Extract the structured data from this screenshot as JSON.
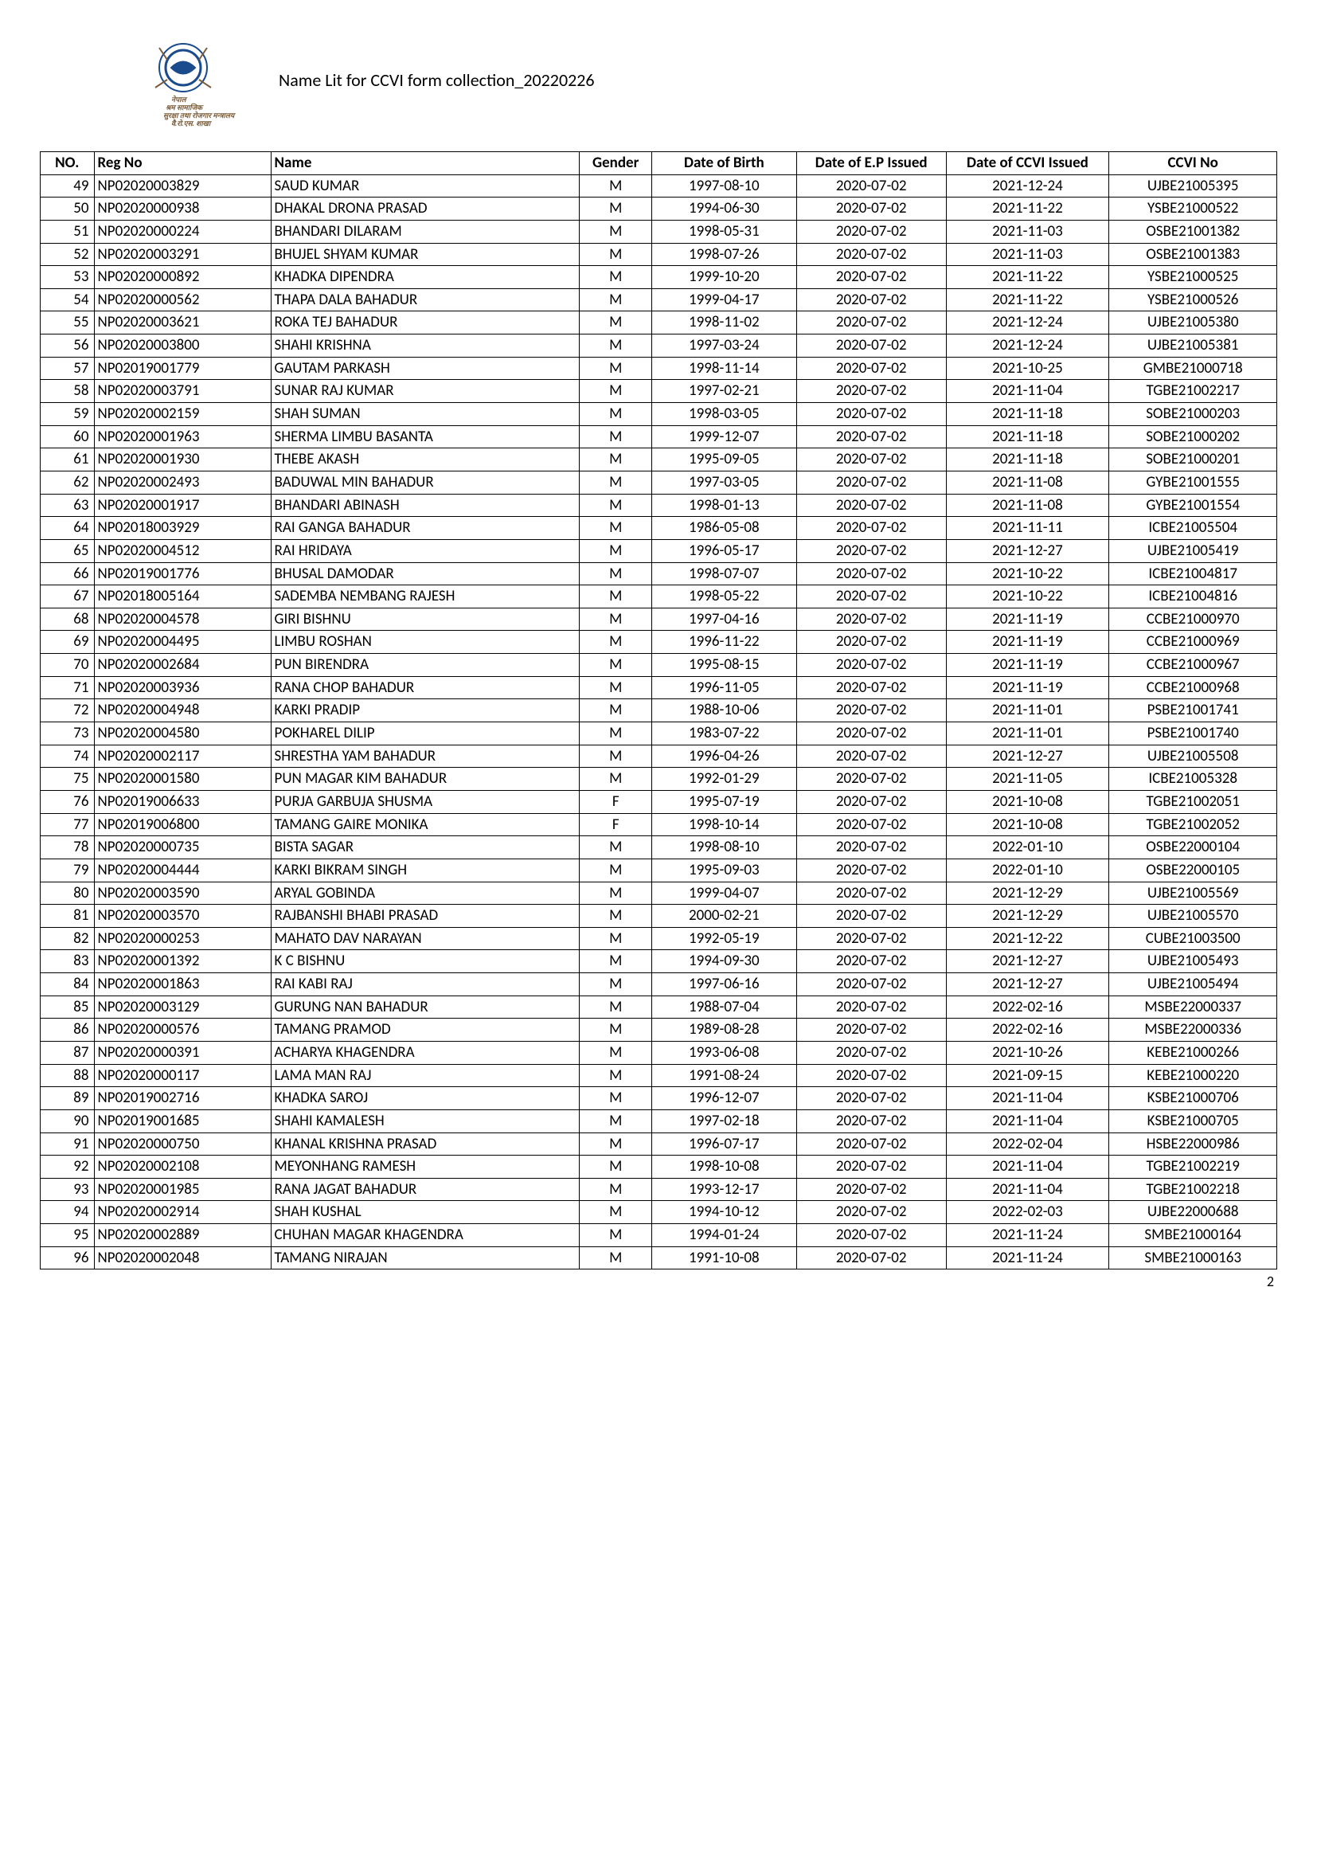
{
  "doc_title": "Name Lit for CCVI form collection_20220226",
  "page_number": "2",
  "columns": {
    "no": "NO.",
    "reg": "Reg No",
    "name": "Name",
    "gender": "Gender",
    "dob": "Date of Birth",
    "ep": "Date of E.P Issued",
    "ccvi": "Date of CCVI Issued",
    "ccvn": "CCVI No"
  },
  "rows": [
    {
      "no": "49",
      "reg": "NP02020003829",
      "name": "SAUD KUMAR",
      "g": "M",
      "dob": "1997-08-10",
      "ep": "2020-07-02",
      "ccvi": "2021-12-24",
      "ccvn": "UJBE21005395"
    },
    {
      "no": "50",
      "reg": "NP02020000938",
      "name": "DHAKAL DRONA PRASAD",
      "g": "M",
      "dob": "1994-06-30",
      "ep": "2020-07-02",
      "ccvi": "2021-11-22",
      "ccvn": "YSBE21000522"
    },
    {
      "no": "51",
      "reg": "NP02020000224",
      "name": "BHANDARI DILARAM",
      "g": "M",
      "dob": "1998-05-31",
      "ep": "2020-07-02",
      "ccvi": "2021-11-03",
      "ccvn": "OSBE21001382"
    },
    {
      "no": "52",
      "reg": "NP02020003291",
      "name": "BHUJEL SHYAM KUMAR",
      "g": "M",
      "dob": "1998-07-26",
      "ep": "2020-07-02",
      "ccvi": "2021-11-03",
      "ccvn": "OSBE21001383"
    },
    {
      "no": "53",
      "reg": "NP02020000892",
      "name": "KHADKA DIPENDRA",
      "g": "M",
      "dob": "1999-10-20",
      "ep": "2020-07-02",
      "ccvi": "2021-11-22",
      "ccvn": "YSBE21000525"
    },
    {
      "no": "54",
      "reg": "NP02020000562",
      "name": "THAPA DALA BAHADUR",
      "g": "M",
      "dob": "1999-04-17",
      "ep": "2020-07-02",
      "ccvi": "2021-11-22",
      "ccvn": "YSBE21000526"
    },
    {
      "no": "55",
      "reg": "NP02020003621",
      "name": "ROKA TEJ BAHADUR",
      "g": "M",
      "dob": "1998-11-02",
      "ep": "2020-07-02",
      "ccvi": "2021-12-24",
      "ccvn": "UJBE21005380"
    },
    {
      "no": "56",
      "reg": "NP02020003800",
      "name": "SHAHI KRISHNA",
      "g": "M",
      "dob": "1997-03-24",
      "ep": "2020-07-02",
      "ccvi": "2021-12-24",
      "ccvn": "UJBE21005381"
    },
    {
      "no": "57",
      "reg": "NP02019001779",
      "name": "GAUTAM PARKASH",
      "g": "M",
      "dob": "1998-11-14",
      "ep": "2020-07-02",
      "ccvi": "2021-10-25",
      "ccvn": "GMBE21000718"
    },
    {
      "no": "58",
      "reg": "NP02020003791",
      "name": "SUNAR RAJ KUMAR",
      "g": "M",
      "dob": "1997-02-21",
      "ep": "2020-07-02",
      "ccvi": "2021-11-04",
      "ccvn": "TGBE21002217"
    },
    {
      "no": "59",
      "reg": "NP02020002159",
      "name": "SHAH SUMAN",
      "g": "M",
      "dob": "1998-03-05",
      "ep": "2020-07-02",
      "ccvi": "2021-11-18",
      "ccvn": "SOBE21000203"
    },
    {
      "no": "60",
      "reg": "NP02020001963",
      "name": "SHERMA LIMBU BASANTA",
      "g": "M",
      "dob": "1999-12-07",
      "ep": "2020-07-02",
      "ccvi": "2021-11-18",
      "ccvn": "SOBE21000202"
    },
    {
      "no": "61",
      "reg": "NP02020001930",
      "name": "THEBE AKASH",
      "g": "M",
      "dob": "1995-09-05",
      "ep": "2020-07-02",
      "ccvi": "2021-11-18",
      "ccvn": "SOBE21000201"
    },
    {
      "no": "62",
      "reg": "NP02020002493",
      "name": "BADUWAL MIN BAHADUR",
      "g": "M",
      "dob": "1997-03-05",
      "ep": "2020-07-02",
      "ccvi": "2021-11-08",
      "ccvn": "GYBE21001555"
    },
    {
      "no": "63",
      "reg": "NP02020001917",
      "name": "BHANDARI ABINASH",
      "g": "M",
      "dob": "1998-01-13",
      "ep": "2020-07-02",
      "ccvi": "2021-11-08",
      "ccvn": "GYBE21001554"
    },
    {
      "no": "64",
      "reg": "NP02018003929",
      "name": "RAI GANGA BAHADUR",
      "g": "M",
      "dob": "1986-05-08",
      "ep": "2020-07-02",
      "ccvi": "2021-11-11",
      "ccvn": "ICBE21005504"
    },
    {
      "no": "65",
      "reg": "NP02020004512",
      "name": "RAI HRIDAYA",
      "g": "M",
      "dob": "1996-05-17",
      "ep": "2020-07-02",
      "ccvi": "2021-12-27",
      "ccvn": "UJBE21005419"
    },
    {
      "no": "66",
      "reg": "NP02019001776",
      "name": "BHUSAL DAMODAR",
      "g": "M",
      "dob": "1998-07-07",
      "ep": "2020-07-02",
      "ccvi": "2021-10-22",
      "ccvn": "ICBE21004817"
    },
    {
      "no": "67",
      "reg": "NP02018005164",
      "name": "SADEMBA NEMBANG RAJESH",
      "g": "M",
      "dob": "1998-05-22",
      "ep": "2020-07-02",
      "ccvi": "2021-10-22",
      "ccvn": "ICBE21004816"
    },
    {
      "no": "68",
      "reg": "NP02020004578",
      "name": "GIRI BISHNU",
      "g": "M",
      "dob": "1997-04-16",
      "ep": "2020-07-02",
      "ccvi": "2021-11-19",
      "ccvn": "CCBE21000970"
    },
    {
      "no": "69",
      "reg": "NP02020004495",
      "name": "LIMBU ROSHAN",
      "g": "M",
      "dob": "1996-11-22",
      "ep": "2020-07-02",
      "ccvi": "2021-11-19",
      "ccvn": "CCBE21000969"
    },
    {
      "no": "70",
      "reg": "NP02020002684",
      "name": "PUN BIRENDRA",
      "g": "M",
      "dob": "1995-08-15",
      "ep": "2020-07-02",
      "ccvi": "2021-11-19",
      "ccvn": "CCBE21000967"
    },
    {
      "no": "71",
      "reg": "NP02020003936",
      "name": "RANA CHOP BAHADUR",
      "g": "M",
      "dob": "1996-11-05",
      "ep": "2020-07-02",
      "ccvi": "2021-11-19",
      "ccvn": "CCBE21000968"
    },
    {
      "no": "72",
      "reg": "NP02020004948",
      "name": "KARKI PRADIP",
      "g": "M",
      "dob": "1988-10-06",
      "ep": "2020-07-02",
      "ccvi": "2021-11-01",
      "ccvn": "PSBE21001741"
    },
    {
      "no": "73",
      "reg": "NP02020004580",
      "name": "POKHAREL DILIP",
      "g": "M",
      "dob": "1983-07-22",
      "ep": "2020-07-02",
      "ccvi": "2021-11-01",
      "ccvn": "PSBE21001740"
    },
    {
      "no": "74",
      "reg": "NP02020002117",
      "name": "SHRESTHA YAM BAHADUR",
      "g": "M",
      "dob": "1996-04-26",
      "ep": "2020-07-02",
      "ccvi": "2021-12-27",
      "ccvn": "UJBE21005508"
    },
    {
      "no": "75",
      "reg": "NP02020001580",
      "name": "PUN MAGAR KIM BAHADUR",
      "g": "M",
      "dob": "1992-01-29",
      "ep": "2020-07-02",
      "ccvi": "2021-11-05",
      "ccvn": "ICBE21005328"
    },
    {
      "no": "76",
      "reg": "NP02019006633",
      "name": "PURJA GARBUJA SHUSMA",
      "g": "F",
      "dob": "1995-07-19",
      "ep": "2020-07-02",
      "ccvi": "2021-10-08",
      "ccvn": "TGBE21002051"
    },
    {
      "no": "77",
      "reg": "NP02019006800",
      "name": "TAMANG GAIRE MONIKA",
      "g": "F",
      "dob": "1998-10-14",
      "ep": "2020-07-02",
      "ccvi": "2021-10-08",
      "ccvn": "TGBE21002052"
    },
    {
      "no": "78",
      "reg": "NP02020000735",
      "name": "BISTA SAGAR",
      "g": "M",
      "dob": "1998-08-10",
      "ep": "2020-07-02",
      "ccvi": "2022-01-10",
      "ccvn": "OSBE22000104"
    },
    {
      "no": "79",
      "reg": "NP02020004444",
      "name": "KARKI BIKRAM SINGH",
      "g": "M",
      "dob": "1995-09-03",
      "ep": "2020-07-02",
      "ccvi": "2022-01-10",
      "ccvn": "OSBE22000105"
    },
    {
      "no": "80",
      "reg": "NP02020003590",
      "name": "ARYAL GOBINDA",
      "g": "M",
      "dob": "1999-04-07",
      "ep": "2020-07-02",
      "ccvi": "2021-12-29",
      "ccvn": "UJBE21005569"
    },
    {
      "no": "81",
      "reg": "NP02020003570",
      "name": "RAJBANSHI BHABI PRASAD",
      "g": "M",
      "dob": "2000-02-21",
      "ep": "2020-07-02",
      "ccvi": "2021-12-29",
      "ccvn": "UJBE21005570"
    },
    {
      "no": "82",
      "reg": "NP02020000253",
      "name": "MAHATO DAV NARAYAN",
      "g": "M",
      "dob": "1992-05-19",
      "ep": "2020-07-02",
      "ccvi": "2021-12-22",
      "ccvn": "CUBE21003500"
    },
    {
      "no": "83",
      "reg": "NP02020001392",
      "name": "K C BISHNU",
      "g": "M",
      "dob": "1994-09-30",
      "ep": "2020-07-02",
      "ccvi": "2021-12-27",
      "ccvn": "UJBE21005493"
    },
    {
      "no": "84",
      "reg": "NP02020001863",
      "name": "RAI KABI RAJ",
      "g": "M",
      "dob": "1997-06-16",
      "ep": "2020-07-02",
      "ccvi": "2021-12-27",
      "ccvn": "UJBE21005494"
    },
    {
      "no": "85",
      "reg": "NP02020003129",
      "name": "GURUNG NAN BAHADUR",
      "g": "M",
      "dob": "1988-07-04",
      "ep": "2020-07-02",
      "ccvi": "2022-02-16",
      "ccvn": "MSBE22000337"
    },
    {
      "no": "86",
      "reg": "NP02020000576",
      "name": "TAMANG PRAMOD",
      "g": "M",
      "dob": "1989-08-28",
      "ep": "2020-07-02",
      "ccvi": "2022-02-16",
      "ccvn": "MSBE22000336"
    },
    {
      "no": "87",
      "reg": "NP02020000391",
      "name": "ACHARYA KHAGENDRA",
      "g": "M",
      "dob": "1993-06-08",
      "ep": "2020-07-02",
      "ccvi": "2021-10-26",
      "ccvn": "KEBE21000266"
    },
    {
      "no": "88",
      "reg": "NP02020000117",
      "name": "LAMA MAN RAJ",
      "g": "M",
      "dob": "1991-08-24",
      "ep": "2020-07-02",
      "ccvi": "2021-09-15",
      "ccvn": "KEBE21000220"
    },
    {
      "no": "89",
      "reg": "NP02019002716",
      "name": "KHADKA SAROJ",
      "g": "M",
      "dob": "1996-12-07",
      "ep": "2020-07-02",
      "ccvi": "2021-11-04",
      "ccvn": "KSBE21000706"
    },
    {
      "no": "90",
      "reg": "NP02019001685",
      "name": "SHAHI KAMALESH",
      "g": "M",
      "dob": "1997-02-18",
      "ep": "2020-07-02",
      "ccvi": "2021-11-04",
      "ccvn": "KSBE21000705"
    },
    {
      "no": "91",
      "reg": "NP02020000750",
      "name": "KHANAL KRISHNA PRASAD",
      "g": "M",
      "dob": "1996-07-17",
      "ep": "2020-07-02",
      "ccvi": "2022-02-04",
      "ccvn": "HSBE22000986"
    },
    {
      "no": "92",
      "reg": "NP02020002108",
      "name": "MEYONHANG RAMESH",
      "g": "M",
      "dob": "1998-10-08",
      "ep": "2020-07-02",
      "ccvi": "2021-11-04",
      "ccvn": "TGBE21002219"
    },
    {
      "no": "93",
      "reg": "NP02020001985",
      "name": "RANA JAGAT BAHADUR",
      "g": "M",
      "dob": "1993-12-17",
      "ep": "2020-07-02",
      "ccvi": "2021-11-04",
      "ccvn": "TGBE21002218"
    },
    {
      "no": "94",
      "reg": "NP02020002914",
      "name": "SHAH KUSHAL",
      "g": "M",
      "dob": "1994-10-12",
      "ep": "2020-07-02",
      "ccvi": "2022-02-03",
      "ccvn": "UJBE22000688"
    },
    {
      "no": "95",
      "reg": "NP02020002889",
      "name": "CHUHAN MAGAR KHAGENDRA",
      "g": "M",
      "dob": "1994-01-24",
      "ep": "2020-07-02",
      "ccvi": "2021-11-24",
      "ccvn": "SMBE21000164"
    },
    {
      "no": "96",
      "reg": "NP02020002048",
      "name": "TAMANG NIRAJAN",
      "g": "M",
      "dob": "1991-10-08",
      "ep": "2020-07-02",
      "ccvi": "2021-11-24",
      "ccvn": "SMBE21000163"
    }
  ]
}
